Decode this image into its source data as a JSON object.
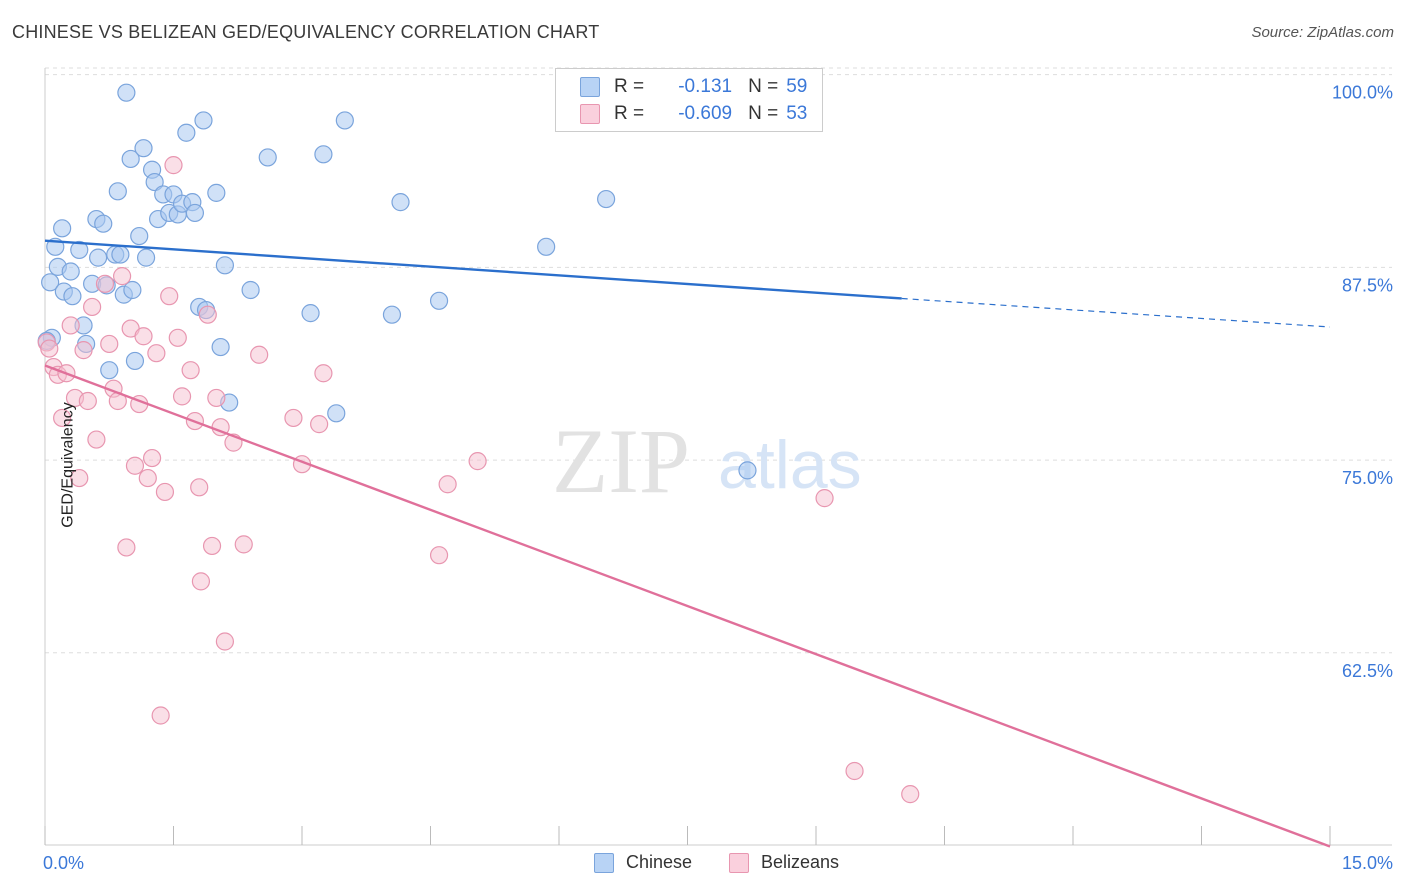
{
  "title": "CHINESE VS BELIZEAN GED/EQUIVALENCY CORRELATION CHART",
  "source": "Source: ZipAtlas.com",
  "watermark": {
    "zip": "ZIP",
    "atlas": "atlas"
  },
  "legend_top": {
    "rows": [
      {
        "r_label": "R =",
        "r_value": "-0.131",
        "n_label": "N =",
        "n_value": "59"
      },
      {
        "r_label": "R =",
        "r_value": "-0.609",
        "n_label": "N =",
        "n_value": "53"
      }
    ]
  },
  "legend_bottom": {
    "chinese": "Chinese",
    "belizeans": "Belizeans"
  },
  "colors": {
    "chinese_fill": "#aac8f0",
    "chinese_stroke": "#7aa4dc",
    "chinese_line": "#2b6fcc",
    "belize_fill": "#f6bfd0",
    "belize_stroke": "#e896b0",
    "belize_line": "#e0709a",
    "axis_label": "#3b78d8",
    "grid": "#dddddd"
  },
  "chart_data": {
    "type": "scatter",
    "title": "CHINESE VS BELIZEAN GED/EQUIVALENCY CORRELATION CHART",
    "xlabel": "",
    "ylabel": "GED/Equivalency",
    "xlim": [
      0,
      15
    ],
    "ylim": [
      51.2,
      101.6
    ],
    "x_tick_labels": [
      "0.0%",
      "15.0%"
    ],
    "y_ticks": [
      100,
      87.5,
      75,
      62.5
    ],
    "y_tick_labels": [
      "100.0%",
      "87.5%",
      "75.0%",
      "62.5%"
    ],
    "series": [
      {
        "name": "Chinese",
        "R": -0.131,
        "N": 59,
        "trend": {
          "x0": 0,
          "y0": 90.4,
          "x1": 10.0,
          "y1": 86.65,
          "dash_x1": 15.0,
          "dash_y1": 84.8
        },
        "points": [
          [
            0.08,
            84.1
          ],
          [
            0.06,
            87.7
          ],
          [
            0.12,
            90.0
          ],
          [
            0.15,
            88.7
          ],
          [
            0.2,
            91.2
          ],
          [
            0.22,
            87.1
          ],
          [
            0.3,
            88.4
          ],
          [
            0.32,
            86.8
          ],
          [
            0.4,
            89.8
          ],
          [
            0.45,
            84.9
          ],
          [
            0.48,
            83.7
          ],
          [
            0.55,
            87.6
          ],
          [
            0.6,
            91.8
          ],
          [
            0.62,
            89.3
          ],
          [
            0.68,
            91.5
          ],
          [
            0.72,
            87.5
          ],
          [
            0.75,
            82.0
          ],
          [
            0.82,
            89.5
          ],
          [
            0.85,
            93.6
          ],
          [
            0.88,
            89.5
          ],
          [
            0.92,
            86.9
          ],
          [
            0.95,
            100.0
          ],
          [
            1.0,
            95.7
          ],
          [
            1.02,
            87.2
          ],
          [
            1.05,
            82.6
          ],
          [
            1.1,
            90.7
          ],
          [
            1.15,
            96.4
          ],
          [
            1.18,
            89.3
          ],
          [
            1.25,
            95.0
          ],
          [
            1.28,
            94.2
          ],
          [
            1.32,
            91.8
          ],
          [
            1.38,
            93.4
          ],
          [
            1.45,
            92.2
          ],
          [
            1.5,
            93.4
          ],
          [
            1.55,
            92.1
          ],
          [
            1.6,
            92.8
          ],
          [
            1.65,
            97.4
          ],
          [
            1.72,
            92.9
          ],
          [
            1.75,
            92.2
          ],
          [
            1.8,
            86.1
          ],
          [
            1.85,
            98.2
          ],
          [
            1.88,
            85.9
          ],
          [
            2.0,
            93.5
          ],
          [
            2.05,
            83.5
          ],
          [
            2.1,
            88.8
          ],
          [
            2.15,
            79.9
          ],
          [
            2.4,
            87.2
          ],
          [
            2.6,
            95.8
          ],
          [
            3.1,
            85.7
          ],
          [
            3.25,
            96.0
          ],
          [
            3.4,
            79.2
          ],
          [
            3.5,
            98.2
          ],
          [
            4.05,
            85.6
          ],
          [
            4.15,
            92.9
          ],
          [
            4.6,
            86.5
          ],
          [
            5.85,
            90.0
          ],
          [
            6.55,
            93.1
          ],
          [
            8.2,
            75.5
          ],
          [
            0.02,
            83.9
          ]
        ]
      },
      {
        "name": "Belizeans",
        "R": -0.609,
        "N": 53,
        "trend": {
          "x0": 0,
          "y0": 82.3,
          "x1": 15.0,
          "y1": 51.1
        },
        "points": [
          [
            0.02,
            83.8
          ],
          [
            0.05,
            83.4
          ],
          [
            0.1,
            82.2
          ],
          [
            0.15,
            81.7
          ],
          [
            0.2,
            78.9
          ],
          [
            0.25,
            81.8
          ],
          [
            0.3,
            84.9
          ],
          [
            0.35,
            80.2
          ],
          [
            0.4,
            75.0
          ],
          [
            0.45,
            83.3
          ],
          [
            0.5,
            80.0
          ],
          [
            0.55,
            86.1
          ],
          [
            0.6,
            77.5
          ],
          [
            0.7,
            87.6
          ],
          [
            0.75,
            83.7
          ],
          [
            0.8,
            80.8
          ],
          [
            0.85,
            80.0
          ],
          [
            0.9,
            88.1
          ],
          [
            0.95,
            70.5
          ],
          [
            1.0,
            84.7
          ],
          [
            1.05,
            75.8
          ],
          [
            1.1,
            79.8
          ],
          [
            1.15,
            84.2
          ],
          [
            1.2,
            75.0
          ],
          [
            1.25,
            76.3
          ],
          [
            1.3,
            83.1
          ],
          [
            1.35,
            59.6
          ],
          [
            1.4,
            74.1
          ],
          [
            1.45,
            86.8
          ],
          [
            1.5,
            95.3
          ],
          [
            1.55,
            84.1
          ],
          [
            1.6,
            80.3
          ],
          [
            1.7,
            82.0
          ],
          [
            1.75,
            78.7
          ],
          [
            1.8,
            74.4
          ],
          [
            1.82,
            68.3
          ],
          [
            1.9,
            85.6
          ],
          [
            1.95,
            70.6
          ],
          [
            2.0,
            80.2
          ],
          [
            2.05,
            78.3
          ],
          [
            2.1,
            64.4
          ],
          [
            2.2,
            77.3
          ],
          [
            2.32,
            70.7
          ],
          [
            2.5,
            83.0
          ],
          [
            2.9,
            78.9
          ],
          [
            3.0,
            75.9
          ],
          [
            3.2,
            78.5
          ],
          [
            3.25,
            81.8
          ],
          [
            4.6,
            70.0
          ],
          [
            4.7,
            74.6
          ],
          [
            5.05,
            76.1
          ],
          [
            9.1,
            73.7
          ],
          [
            9.45,
            56.0
          ]
        ]
      }
    ],
    "extra_belize_point": [
      10.1,
      54.5
    ]
  }
}
